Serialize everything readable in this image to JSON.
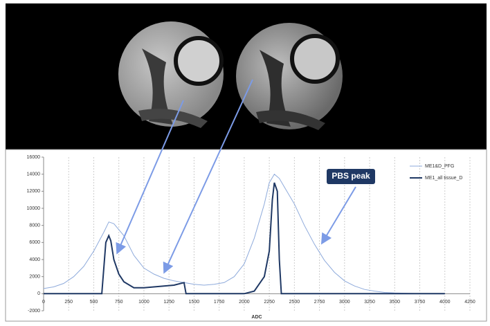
{
  "chart_data": {
    "type": "line",
    "x_label": "ADC",
    "annotation": "PBS peak",
    "xlim": [
      0,
      4250
    ],
    "xticks": [
      0,
      250,
      500,
      750,
      1000,
      1250,
      1500,
      1750,
      2000,
      2250,
      2500,
      2750,
      3000,
      3250,
      3500,
      3750,
      4000,
      4250
    ],
    "ylim": [
      -2000,
      16000
    ],
    "yticks": [
      -2000,
      0,
      2000,
      4000,
      6000,
      8000,
      10000,
      12000,
      14000,
      16000
    ],
    "grid": true,
    "legend": "top-right",
    "series": [
      {
        "name": "ME1&D_PFG",
        "color": "#8eaadb",
        "x": [
          0,
          100,
          200,
          300,
          400,
          500,
          600,
          650,
          700,
          800,
          900,
          1000,
          1100,
          1200,
          1300,
          1400,
          1500,
          1600,
          1700,
          1800,
          1900,
          2000,
          2100,
          2200,
          2250,
          2300,
          2350,
          2400,
          2500,
          2600,
          2700,
          2800,
          2900,
          3000,
          3100,
          3200,
          3300,
          3400,
          3500,
          3700,
          4000
        ],
        "values": [
          600,
          800,
          1200,
          2000,
          3200,
          5000,
          7200,
          8400,
          8200,
          6800,
          4500,
          3000,
          2300,
          1800,
          1500,
          1300,
          1100,
          1000,
          1100,
          1300,
          2000,
          3500,
          6500,
          10500,
          13000,
          14000,
          13500,
          12500,
          10500,
          8000,
          5800,
          3900,
          2500,
          1500,
          900,
          500,
          300,
          150,
          80,
          30,
          0
        ]
      },
      {
        "name": "ME1_all tissue_D",
        "color": "#1f3864",
        "x": [
          0,
          580,
          600,
          620,
          650,
          670,
          700,
          750,
          800,
          900,
          1000,
          1100,
          1200,
          1300,
          1400,
          1420,
          2000,
          2100,
          2200,
          2250,
          2280,
          2300,
          2330,
          2350,
          2370,
          4000
        ],
        "values": [
          0,
          0,
          3000,
          6000,
          6800,
          6200,
          4000,
          2300,
          1400,
          700,
          700,
          800,
          900,
          1000,
          1300,
          0,
          0,
          300,
          2000,
          5000,
          11000,
          13000,
          12000,
          4000,
          0,
          0
        ]
      }
    ]
  }
}
